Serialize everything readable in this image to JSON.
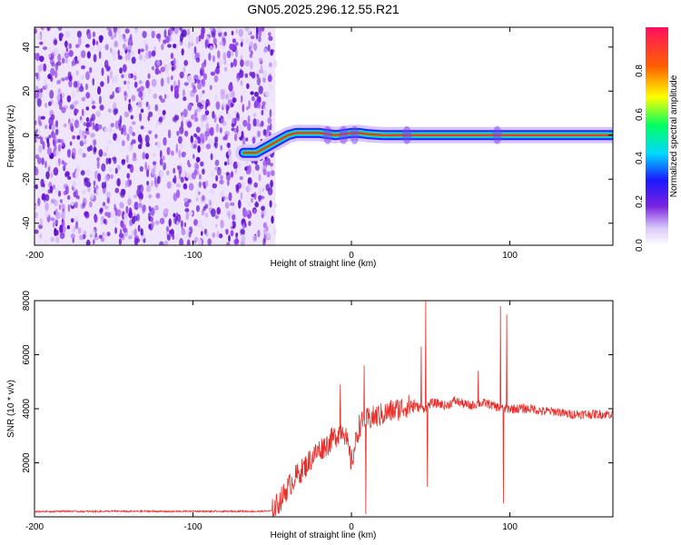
{
  "figure": {
    "title": "GN05.2025.296.12.55.R21"
  },
  "chart_data": [
    {
      "type": "heatmap",
      "xlabel": "Height of straight line (km)",
      "ylabel": "Frequency (Hz)",
      "xlim": [
        -200,
        165
      ],
      "ylim": [
        -50,
        49
      ],
      "x_ticks": [
        "-200",
        "-100",
        "0",
        "100"
      ],
      "x_tick_values": [
        -200,
        -100,
        0,
        100
      ],
      "y_ticks": [
        "-40",
        "-20",
        "0",
        "20",
        "40"
      ],
      "y_tick_values": [
        -40,
        -20,
        0,
        20,
        40
      ],
      "colorbar": {
        "label": "Normalized spectral amplitude",
        "range": [
          0,
          1
        ],
        "ticks": [
          "0.0",
          "0.2",
          "0.4",
          "0.6",
          "0.8"
        ],
        "tick_values": [
          0,
          0.2,
          0.4,
          0.6,
          0.8
        ]
      },
      "noise_region_x": [
        -200,
        -48
      ],
      "signal_trace": {
        "x": [
          -68,
          -60,
          -55,
          -50,
          -45,
          -40,
          -35,
          -30,
          -25,
          -20,
          -15,
          -10,
          -5,
          0,
          5,
          10,
          20,
          30,
          40,
          60,
          80,
          100,
          120,
          140,
          165
        ],
        "freq": [
          -8,
          -8,
          -6,
          -4,
          -2,
          0,
          1,
          1,
          1,
          1,
          0.5,
          0,
          0.5,
          1,
          1,
          0.5,
          0,
          0,
          0,
          0,
          0,
          0,
          0,
          0,
          0
        ]
      },
      "grid": false
    },
    {
      "type": "line",
      "xlabel": "Height of straight line (km)",
      "ylabel": "SNR (10 * v/v)",
      "xlim": [
        -200,
        165
      ],
      "ylim": [
        0,
        8000
      ],
      "x_ticks": [
        "-200",
        "-100",
        "0",
        "100"
      ],
      "x_tick_values": [
        -200,
        -100,
        0,
        100
      ],
      "y_ticks": [
        "2000",
        "4000",
        "6000",
        "8000"
      ],
      "y_tick_values": [
        2000,
        4000,
        6000,
        8000
      ],
      "series": [
        {
          "color": "#e8302c",
          "x": [
            -200,
            -190,
            -180,
            -170,
            -160,
            -150,
            -140,
            -130,
            -120,
            -110,
            -100,
            -90,
            -80,
            -70,
            -60,
            -50,
            -45,
            -40,
            -35,
            -30,
            -25,
            -20,
            -15,
            -10,
            -5,
            0,
            5,
            10,
            15,
            20,
            25,
            30,
            35,
            40,
            45,
            50,
            55,
            60,
            65,
            70,
            75,
            80,
            85,
            90,
            95,
            100,
            105,
            110,
            115,
            120,
            125,
            130,
            135,
            140,
            145,
            150,
            155,
            160,
            165
          ],
          "values": [
            200,
            200,
            210,
            200,
            200,
            210,
            200,
            210,
            200,
            200,
            210,
            200,
            200,
            210,
            200,
            220,
            600,
            1100,
            1500,
            1800,
            2200,
            2500,
            2700,
            3000,
            3300,
            2000,
            3400,
            3600,
            3700,
            3800,
            3900,
            4000,
            4100,
            4100,
            4000,
            4200,
            4200,
            4100,
            4300,
            4200,
            4100,
            4200,
            4200,
            4100,
            4000,
            4000,
            4000,
            4000,
            4000,
            3900,
            3900,
            3900,
            3800,
            3800,
            3800,
            3800,
            3800,
            3800,
            3800
          ]
        }
      ],
      "spikes": [
        {
          "x": -7,
          "value": 4900
        },
        {
          "x": 8,
          "value": 5600
        },
        {
          "x": 44,
          "value": 6300
        },
        {
          "x": 47,
          "value": 8000
        },
        {
          "x": 48,
          "value": 1100
        },
        {
          "x": 80,
          "value": 5400
        },
        {
          "x": 94,
          "value": 7800
        },
        {
          "x": 96,
          "value": 500
        },
        {
          "x": 98,
          "value": 7500
        },
        {
          "x": 9,
          "value": 100
        }
      ],
      "grid": false
    }
  ]
}
